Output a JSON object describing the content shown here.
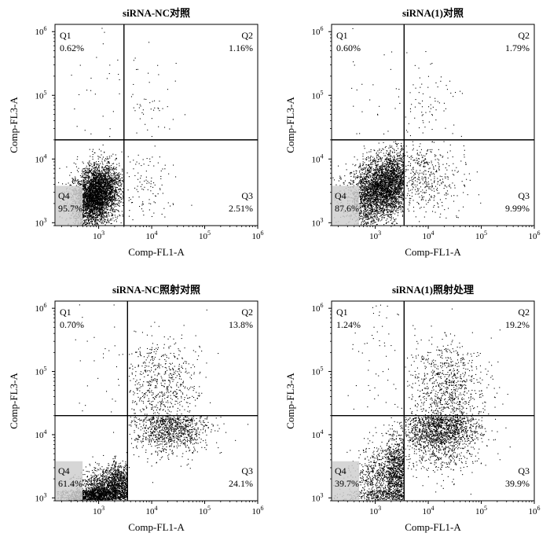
{
  "chart_data": [
    {
      "type": "scatter",
      "title": "siRNA-NC对照",
      "xlabel": "Comp-FL1-A",
      "ylabel": "Comp-FL3-A",
      "xscale": "log",
      "yscale": "log",
      "xlim": [
        150,
        1000000
      ],
      "ylim": [
        900,
        1300000
      ],
      "x_ticks": [
        {
          "base": "10",
          "exp": "3"
        },
        {
          "base": "10",
          "exp": "4"
        },
        {
          "base": "10",
          "exp": "5"
        },
        {
          "base": "10",
          "exp": "6"
        }
      ],
      "y_ticks": [
        {
          "base": "10",
          "exp": "3"
        },
        {
          "base": "10",
          "exp": "4"
        },
        {
          "base": "10",
          "exp": "5"
        },
        {
          "base": "10",
          "exp": "6"
        }
      ],
      "gate": {
        "x": 3000,
        "y": 20000
      },
      "quadrants": [
        {
          "name": "Q1",
          "percent": "0.62%",
          "position": "top-left"
        },
        {
          "name": "Q2",
          "percent": "1.16%",
          "position": "top-right"
        },
        {
          "name": "Q3",
          "percent": "2.51%",
          "position": "bottom-right"
        },
        {
          "name": "Q4",
          "percent": "95.7%",
          "position": "bottom-left"
        }
      ],
      "population_fractions": {
        "Q1": 0.0062,
        "Q2": 0.0116,
        "Q3": 0.0251,
        "Q4": 0.957
      }
    },
    {
      "type": "scatter",
      "title": "siRNA(1)对照",
      "xlabel": "Comp-FL1-A",
      "ylabel": "Comp-FL3-A",
      "xscale": "log",
      "yscale": "log",
      "xlim": [
        150,
        1000000
      ],
      "ylim": [
        900,
        1300000
      ],
      "x_ticks": [
        {
          "base": "10",
          "exp": "3"
        },
        {
          "base": "10",
          "exp": "4"
        },
        {
          "base": "10",
          "exp": "5"
        },
        {
          "base": "10",
          "exp": "6"
        }
      ],
      "y_ticks": [
        {
          "base": "10",
          "exp": "3"
        },
        {
          "base": "10",
          "exp": "4"
        },
        {
          "base": "10",
          "exp": "5"
        },
        {
          "base": "10",
          "exp": "6"
        }
      ],
      "gate": {
        "x": 3500,
        "y": 20000
      },
      "quadrants": [
        {
          "name": "Q1",
          "percent": "0.60%",
          "position": "top-left"
        },
        {
          "name": "Q2",
          "percent": "1.79%",
          "position": "top-right"
        },
        {
          "name": "Q3",
          "percent": "9.99%",
          "position": "bottom-right"
        },
        {
          "name": "Q4",
          "percent": "87.6%",
          "position": "bottom-left"
        }
      ],
      "population_fractions": {
        "Q1": 0.006,
        "Q2": 0.0179,
        "Q3": 0.0999,
        "Q4": 0.876
      }
    },
    {
      "type": "scatter",
      "title": "siRNA-NC照射对照",
      "xlabel": "Comp-FL1-A",
      "ylabel": "Comp-FL3-A",
      "xscale": "log",
      "yscale": "log",
      "xlim": [
        150,
        1000000
      ],
      "ylim": [
        900,
        1300000
      ],
      "x_ticks": [
        {
          "base": "10",
          "exp": "3"
        },
        {
          "base": "10",
          "exp": "4"
        },
        {
          "base": "10",
          "exp": "5"
        },
        {
          "base": "10",
          "exp": "6"
        }
      ],
      "y_ticks": [
        {
          "base": "10",
          "exp": "3"
        },
        {
          "base": "10",
          "exp": "4"
        },
        {
          "base": "10",
          "exp": "5"
        },
        {
          "base": "10",
          "exp": "6"
        }
      ],
      "gate": {
        "x": 3500,
        "y": 20000
      },
      "quadrants": [
        {
          "name": "Q1",
          "percent": "0.70%",
          "position": "top-left"
        },
        {
          "name": "Q2",
          "percent": "13.8%",
          "position": "top-right"
        },
        {
          "name": "Q3",
          "percent": "24.1%",
          "position": "bottom-right"
        },
        {
          "name": "Q4",
          "percent": "61.4%",
          "position": "bottom-left"
        }
      ],
      "population_fractions": {
        "Q1": 0.007,
        "Q2": 0.138,
        "Q3": 0.241,
        "Q4": 0.614
      }
    },
    {
      "type": "scatter",
      "title": "siRNA(1)照射处理",
      "xlabel": "Comp-FL1-A",
      "ylabel": "Comp-FL3-A",
      "xscale": "log",
      "yscale": "log",
      "xlim": [
        150,
        1000000
      ],
      "ylim": [
        900,
        1300000
      ],
      "x_ticks": [
        {
          "base": "10",
          "exp": "3"
        },
        {
          "base": "10",
          "exp": "4"
        },
        {
          "base": "10",
          "exp": "5"
        },
        {
          "base": "10",
          "exp": "6"
        }
      ],
      "y_ticks": [
        {
          "base": "10",
          "exp": "3"
        },
        {
          "base": "10",
          "exp": "4"
        },
        {
          "base": "10",
          "exp": "5"
        },
        {
          "base": "10",
          "exp": "6"
        }
      ],
      "gate": {
        "x": 3500,
        "y": 20000
      },
      "quadrants": [
        {
          "name": "Q1",
          "percent": "1.24%",
          "position": "top-left"
        },
        {
          "name": "Q2",
          "percent": "19.2%",
          "position": "top-right"
        },
        {
          "name": "Q3",
          "percent": "39.9%",
          "position": "bottom-right"
        },
        {
          "name": "Q4",
          "percent": "39.7%",
          "position": "bottom-left"
        }
      ],
      "population_fractions": {
        "Q1": 0.0124,
        "Q2": 0.192,
        "Q3": 0.399,
        "Q4": 0.397
      }
    }
  ]
}
